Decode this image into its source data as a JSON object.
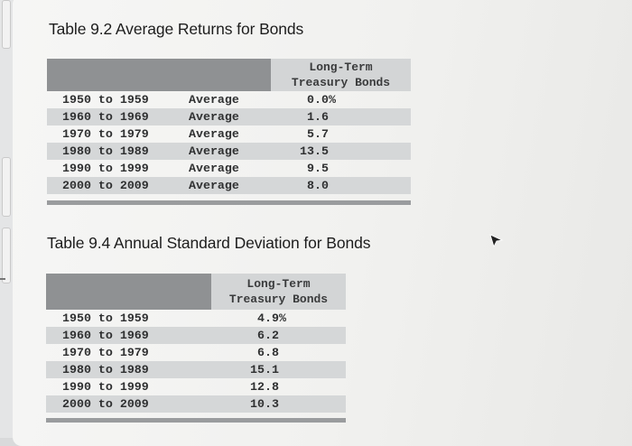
{
  "table1": {
    "title": "Table 9.2 Average Returns for Bonds",
    "header_line1": "Long-Term",
    "header_line2": "Treasury Bonds",
    "rows": [
      {
        "period": "1950 to 1959",
        "label": "Average",
        "value": "0.0%"
      },
      {
        "period": "1960 to 1969",
        "label": "Average",
        "value": "1.6"
      },
      {
        "period": "1970 to 1979",
        "label": "Average",
        "value": "5.7"
      },
      {
        "period": "1980 to 1989",
        "label": "Average",
        "value": "13.5"
      },
      {
        "period": "1990 to 1999",
        "label": "Average",
        "value": "9.5"
      },
      {
        "period": "2000 to 2009",
        "label": "Average",
        "value": "8.0"
      }
    ]
  },
  "table2": {
    "title": "Table 9.4 Annual Standard Deviation for Bonds",
    "header_line1": "Long-Term",
    "header_line2": "Treasury Bonds",
    "rows": [
      {
        "period": "1950 to 1959",
        "value": "4.9%"
      },
      {
        "period": "1960 to 1969",
        "value": "6.2"
      },
      {
        "period": "1970 to 1979",
        "value": "6.8"
      },
      {
        "period": "1980 to 1989",
        "value": "15.1"
      },
      {
        "period": "1990 to 1999",
        "value": "12.8"
      },
      {
        "period": "2000 to 2009",
        "value": "10.3"
      }
    ]
  },
  "cursor_icon": "mouse-pointer-icon"
}
